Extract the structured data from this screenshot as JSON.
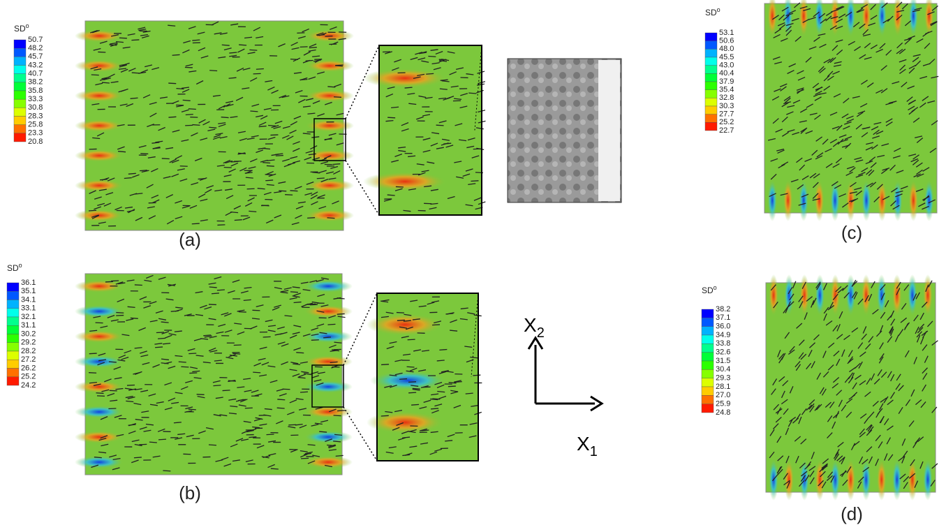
{
  "panels": [
    {
      "label": "(a)",
      "legend": {
        "title": "SD",
        "title_sup": "o",
        "ticks": [
          "50.7",
          "48.2",
          "45.7",
          "43.2",
          "40.7",
          "38.2",
          "35.8",
          "33.3",
          "30.8",
          "28.3",
          "25.8",
          "23.3",
          "20.8"
        ]
      }
    },
    {
      "label": "(b)",
      "legend": {
        "title": "SD",
        "title_sup": "o",
        "ticks": [
          "36.1",
          "35.1",
          "34.1",
          "33.1",
          "32.1",
          "31.1",
          "30.2",
          "29.2",
          "28.2",
          "27.2",
          "26.2",
          "25.2",
          "24.2"
        ]
      }
    },
    {
      "label": "(c)",
      "legend": {
        "title": "SD",
        "title_sup": "o",
        "ticks": [
          "53.1",
          "50.6",
          "48.0",
          "45.5",
          "43.0",
          "40.4",
          "37.9",
          "35.4",
          "32.8",
          "30.3",
          "27.7",
          "25.2",
          "22.7"
        ]
      }
    },
    {
      "label": "(d)",
      "legend": {
        "title": "SD",
        "title_sup": "o",
        "ticks": [
          "38.2",
          "37.1",
          "36.0",
          "34.9",
          "33.8",
          "32.6",
          "31.5",
          "30.4",
          "29.3",
          "28.1",
          "27.0",
          "25.9",
          "24.8"
        ]
      }
    }
  ],
  "axes": {
    "x1": {
      "base": "X",
      "sub": "1"
    },
    "x2": {
      "base": "X",
      "sub": "2"
    }
  }
}
